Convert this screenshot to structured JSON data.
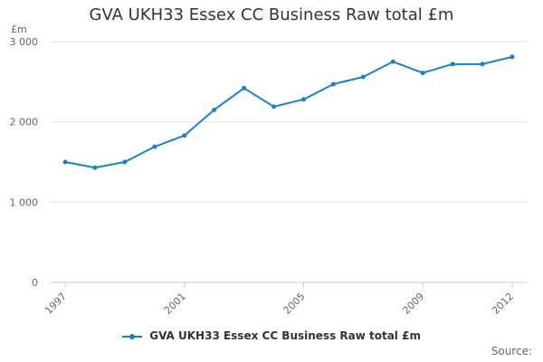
{
  "title": "GVA UKH33 Essex CC Business Raw total £m",
  "unit_label": "£m",
  "source_label": "Source:",
  "colors": {
    "series": "#1f7fbf",
    "grid": "#e6e6e6",
    "axis": "#cccccc"
  },
  "chart_data": {
    "type": "line",
    "title": "GVA UKH33 Essex CC Business Raw total £m",
    "xlabel": "",
    "ylabel": "£m",
    "ylim": [
      0,
      3000
    ],
    "yticks": [
      0,
      1000,
      2000,
      3000
    ],
    "ytick_labels": [
      "0",
      "1 000",
      "2 000",
      "3 000"
    ],
    "xlim": [
      1997,
      2012
    ],
    "xtick_labels": [
      "1997",
      "2001",
      "2005",
      "2009",
      "2012"
    ],
    "xticks": [
      1997,
      2001,
      2005,
      2009,
      2012
    ],
    "grid": true,
    "legend": "bottom",
    "series": [
      {
        "name": "GVA UKH33 Essex CC Business Raw total £m",
        "x": [
          1997,
          1998,
          1999,
          2000,
          2001,
          2002,
          2003,
          2004,
          2005,
          2006,
          2007,
          2008,
          2009,
          2010,
          2011,
          2012
        ],
        "y": [
          1500,
          1430,
          1500,
          1690,
          1830,
          2150,
          2420,
          2190,
          2280,
          2470,
          2560,
          2750,
          2610,
          2720,
          2720,
          2810
        ]
      }
    ]
  }
}
